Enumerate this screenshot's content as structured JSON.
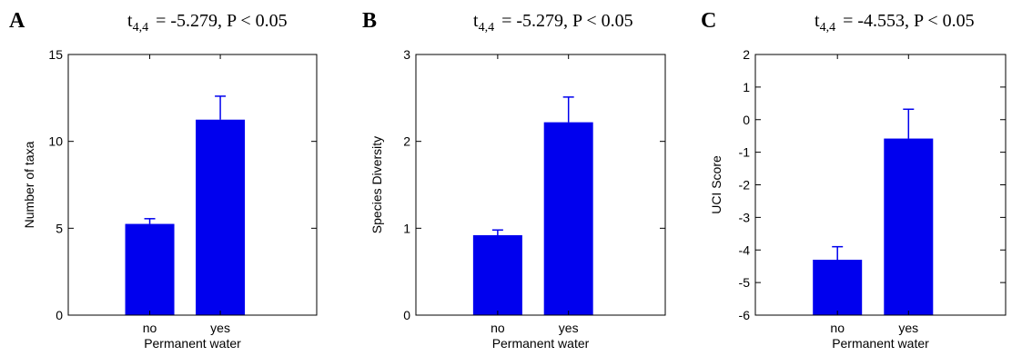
{
  "figure": {
    "bar_color": "#0000ee",
    "axis_color": "#000000"
  },
  "chart_data": [
    {
      "type": "bar",
      "panel_label": "A",
      "stat_t": "t",
      "stat_sub": "4,4",
      "stat_rest": "= -5.279, P < 0.05",
      "categories": [
        "no",
        "yes"
      ],
      "values": [
        5.25,
        11.25
      ],
      "error": [
        0.3,
        1.35
      ],
      "xlabel": "Permanent water",
      "ylabel": "Number of taxa",
      "ylim": [
        0,
        15
      ],
      "yticks": [
        0,
        5,
        10,
        15
      ],
      "ytick_labels": [
        "0",
        "5",
        "10",
        "15"
      ],
      "grid": false
    },
    {
      "type": "bar",
      "panel_label": "B",
      "stat_t": "t",
      "stat_sub": "4,4",
      "stat_rest": "= -5.279, P < 0.05",
      "categories": [
        "no",
        "yes"
      ],
      "values": [
        0.92,
        2.22
      ],
      "error": [
        0.06,
        0.29
      ],
      "xlabel": "Permanent water",
      "ylabel": "Species Diversity",
      "ylim": [
        0,
        3
      ],
      "yticks": [
        0,
        1,
        2,
        3
      ],
      "ytick_labels": [
        "0",
        "1",
        "2",
        "3"
      ],
      "grid": false
    },
    {
      "type": "bar",
      "panel_label": "C",
      "stat_t": "t",
      "stat_sub": "4,4",
      "stat_rest": "= -4.553, P < 0.05",
      "categories": [
        "no",
        "yes"
      ],
      "values": [
        -4.3,
        -0.58
      ],
      "error": [
        0.4,
        0.9
      ],
      "bar_base": -6,
      "xlabel": "Permanent water",
      "ylabel": "UCI Score",
      "ylim": [
        -6,
        2
      ],
      "yticks": [
        -6,
        -5,
        -4,
        -3,
        -2,
        -1,
        0,
        1,
        2
      ],
      "ytick_labels": [
        "-6",
        "-5",
        "-4",
        "-3",
        "-2",
        "-1",
        "0",
        "1",
        "2"
      ],
      "grid": false
    }
  ]
}
